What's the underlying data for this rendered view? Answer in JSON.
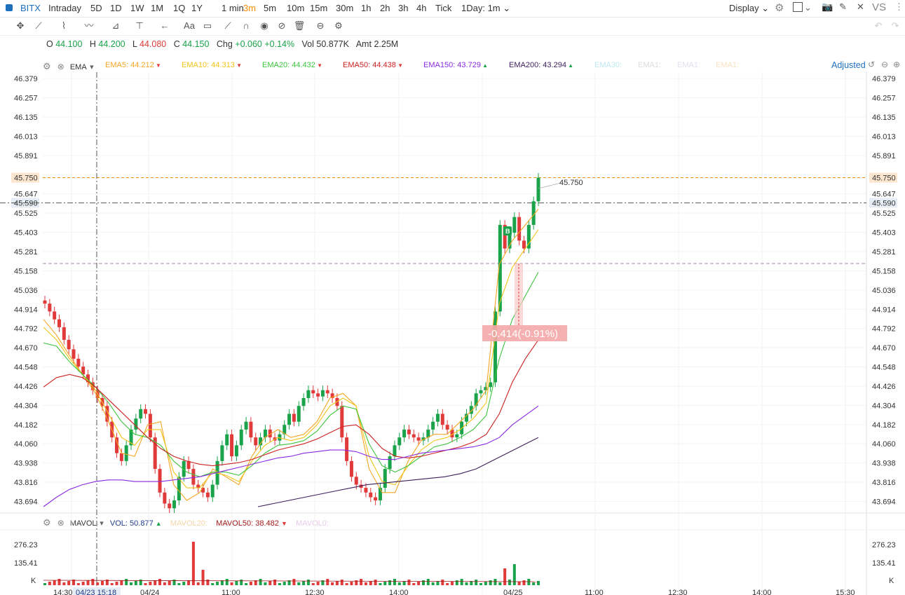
{
  "symbol": "BITX",
  "timeframes": [
    "Intraday",
    "5D",
    "1D",
    "1W",
    "1M",
    "1Q",
    "1Y",
    "1 min",
    "3m",
    "5m",
    "10m",
    "15m",
    "30m",
    "1h",
    "2h",
    "3h",
    "4h",
    "Tick"
  ],
  "active_timeframe": "3m",
  "period_selector": "1Day: 1m",
  "display_label": "Display",
  "vs_label": "VS",
  "text_tool_label": "Aa",
  "ohlc": {
    "o_label": "O",
    "o": "44.100",
    "h_label": "H",
    "h": "44.200",
    "l_label": "L",
    "l": "44.080",
    "c_label": "C",
    "c": "44.150",
    "chg_label": "Chg",
    "chg": "+0.060",
    "chg_pct": "+0.14%",
    "vol_label": "Vol",
    "vol": "50.877K",
    "amt_label": "Amt",
    "amt": "2.25M"
  },
  "ema_legend": {
    "name": "EMA",
    "items": [
      {
        "label": "EMA5:",
        "value": "44.212",
        "color": "#f5a623",
        "dir": "down"
      },
      {
        "label": "EMA10:",
        "value": "44.313",
        "color": "#f0c419",
        "dir": "down"
      },
      {
        "label": "EMA20:",
        "value": "44.432",
        "color": "#3ec43e",
        "dir": "down"
      },
      {
        "label": "EMA50:",
        "value": "44.438",
        "color": "#cc2222",
        "dir": "down"
      },
      {
        "label": "EMA150:",
        "value": "43.729",
        "color": "#8a2be2",
        "dir": "up"
      },
      {
        "label": "EMA200:",
        "value": "43.294",
        "color": "#3b1f5c",
        "dir": "up"
      }
    ],
    "faded": [
      "EMA30:",
      "EMA1:",
      "EMA1:",
      "EMA1:"
    ],
    "adjusted_label": "Adjusted"
  },
  "vol_legend": {
    "name": "MAVOL",
    "vol_label": "VOL:",
    "vol_value": "50.877",
    "mavol20_label": "MAVOL20:",
    "mavol50_label": "MAVOL50:",
    "mavol50_value": "38.482",
    "mavol0_label": "MAVOL0:"
  },
  "price_axis_labels": [
    "46.379",
    "46.257",
    "46.135",
    "46.013",
    "45.891",
    "45.750",
    "45.647",
    "45.590",
    "45.525",
    "45.403",
    "45.281",
    "45.158",
    "45.036",
    "44.914",
    "44.792",
    "44.670",
    "44.548",
    "44.426",
    "44.304",
    "44.182",
    "44.060",
    "43.938",
    "43.816",
    "43.694"
  ],
  "highlight_price": "45.750",
  "crosshair_price": "45.590",
  "annotation_price": "45.750",
  "measure_label": "-0.414(-0.91%)",
  "volume_axis_labels": [
    "276.23",
    "135.41",
    "K"
  ],
  "time_axis_labels": [
    "14:30",
    "04/24",
    "11:00",
    "12:30",
    "14:00",
    "04/25",
    "11:00",
    "12:30",
    "14:00",
    "15:30"
  ],
  "crosshair_time": "04/23 15:18",
  "buy_marker": "B",
  "colors": {
    "up": "#1aa34a",
    "down": "#e03a3a",
    "accent": "#f28c00",
    "blue": "#1f6fbf"
  },
  "chart_data": {
    "type": "candlestick",
    "interval": "3m",
    "ylim": [
      43.62,
      46.42
    ],
    "price_series_approx": [
      44.95,
      44.9,
      44.85,
      44.8,
      44.72,
      44.66,
      44.6,
      44.55,
      44.5,
      44.45,
      44.4,
      44.35,
      44.3,
      44.2,
      44.1,
      44.0,
      43.95,
      44.05,
      44.15,
      44.22,
      44.28,
      44.25,
      44.1,
      43.9,
      43.75,
      43.68,
      43.65,
      43.7,
      43.85,
      43.95,
      43.9,
      43.8,
      43.78,
      43.75,
      43.72,
      43.8,
      43.95,
      44.05,
      44.12,
      43.98,
      44.05,
      44.15,
      44.2,
      44.1,
      44.05,
      44.1,
      44.15,
      44.1,
      44.08,
      44.12,
      44.18,
      44.25,
      44.2,
      44.3,
      44.35,
      44.4,
      44.38,
      44.36,
      44.4,
      44.38,
      44.35,
      44.3,
      44.1,
      43.95,
      43.85,
      43.8,
      43.78,
      43.75,
      43.72,
      43.7,
      43.78,
      43.9,
      43.98,
      44.05,
      44.1,
      44.15,
      44.12,
      44.1,
      44.08,
      44.1,
      44.15,
      44.2,
      44.25,
      44.18,
      44.15,
      44.1,
      44.12,
      44.2,
      44.25,
      44.3,
      44.38,
      44.4,
      44.42,
      44.45,
      44.9,
      45.45,
      45.3,
      45.4,
      45.5,
      45.35,
      45.3,
      45.45,
      45.6,
      45.75
    ],
    "series": [
      {
        "name": "EMA5",
        "values": [
          44.85,
          44.75,
          44.62,
          44.5,
          44.38,
          44.2,
          44.0,
          43.98,
          44.18,
          44.2,
          43.8,
          43.7,
          43.75,
          43.9,
          43.85,
          43.8,
          43.98,
          44.1,
          44.15,
          44.1,
          44.12,
          44.2,
          44.35,
          44.38,
          44.3,
          43.9,
          43.75,
          43.75,
          43.95,
          44.08,
          44.12,
          44.12,
          44.2,
          44.28,
          44.4,
          45.2,
          45.35,
          45.45,
          45.55
        ]
      },
      {
        "name": "EMA10",
        "values": [
          44.8,
          44.72,
          44.6,
          44.5,
          44.4,
          44.25,
          44.1,
          44.05,
          44.15,
          44.15,
          43.88,
          43.78,
          43.78,
          43.88,
          43.86,
          43.82,
          43.95,
          44.05,
          44.1,
          44.08,
          44.1,
          44.18,
          44.3,
          44.35,
          44.3,
          43.98,
          43.82,
          43.8,
          43.92,
          44.02,
          44.08,
          44.1,
          44.15,
          44.22,
          44.32,
          44.95,
          45.18,
          45.3,
          45.42
        ]
      },
      {
        "name": "EMA20",
        "values": [
          44.7,
          44.68,
          44.58,
          44.5,
          44.42,
          44.32,
          44.2,
          44.12,
          44.1,
          44.05,
          43.95,
          43.88,
          43.85,
          43.88,
          43.88,
          43.86,
          43.92,
          44.0,
          44.05,
          44.06,
          44.08,
          44.14,
          44.24,
          44.3,
          44.28,
          44.06,
          43.92,
          43.88,
          43.92,
          43.98,
          44.04,
          44.06,
          44.1,
          44.15,
          44.24,
          44.6,
          44.85,
          45.0,
          45.15
        ]
      },
      {
        "name": "EMA50",
        "values": [
          44.42,
          44.48,
          44.5,
          44.48,
          44.42,
          44.34,
          44.26,
          44.18,
          44.1,
          44.03,
          43.98,
          43.95,
          43.93,
          43.92,
          43.93,
          43.94,
          43.96,
          43.99,
          44.02,
          44.04,
          44.06,
          44.09,
          44.13,
          44.17,
          44.18,
          44.12,
          44.03,
          43.98,
          43.97,
          43.98,
          44.0,
          44.02,
          44.04,
          44.07,
          44.12,
          44.25,
          44.45,
          44.6,
          44.72
        ]
      },
      {
        "name": "EMA150",
        "values": [
          43.66,
          43.72,
          43.77,
          43.8,
          43.82,
          43.83,
          43.83,
          43.82,
          43.82,
          43.82,
          43.83,
          43.84,
          43.85,
          43.87,
          43.89,
          43.91,
          43.93,
          43.95,
          43.97,
          43.98,
          44.0,
          44.01,
          44.02,
          44.02,
          44.01,
          43.98,
          43.96,
          43.96,
          43.98,
          44.0,
          44.01,
          44.02,
          44.03,
          44.04,
          44.06,
          44.1,
          44.18,
          44.24,
          44.3
        ]
      },
      {
        "name": "EMA200",
        "values": [
          43.66,
          43.68,
          43.7,
          43.72,
          43.74,
          43.76,
          43.78,
          43.8,
          43.81,
          43.82,
          43.83,
          43.84,
          43.85,
          43.87,
          43.9,
          43.95,
          44.0,
          44.05,
          44.1
        ]
      }
    ]
  }
}
